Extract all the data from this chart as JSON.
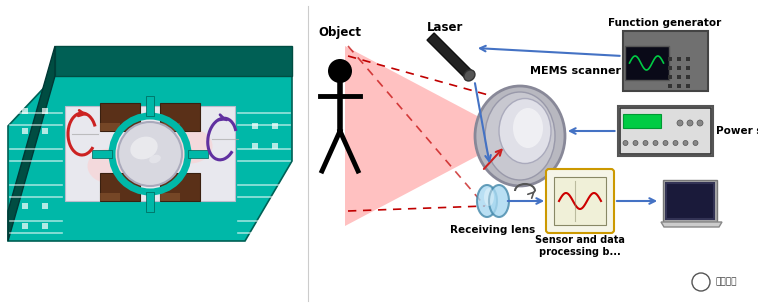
{
  "title": "",
  "background_color": "#ffffff",
  "figsize": [
    7.58,
    3.06
  ],
  "dpi": 100,
  "labels": {
    "laser": "Laser",
    "function_generator": "Function generator",
    "mems_scanner": "MEMS scanner",
    "power_supply": "Power supply",
    "object": "Object",
    "receiving_lens": "Receiving lens",
    "sensor_data": "Sensor and data\nprocessing b...",
    "watermark_cn": "九章智驾"
  },
  "arrow_color": "#4472c4",
  "dashed_color": "#c00000",
  "teal_color": "#00b8a8",
  "red_arrow": "#cc2222",
  "purple_arrow": "#6030a0",
  "board_top": "#00b8a8",
  "board_side": "#006055",
  "board_right": "#004d42"
}
